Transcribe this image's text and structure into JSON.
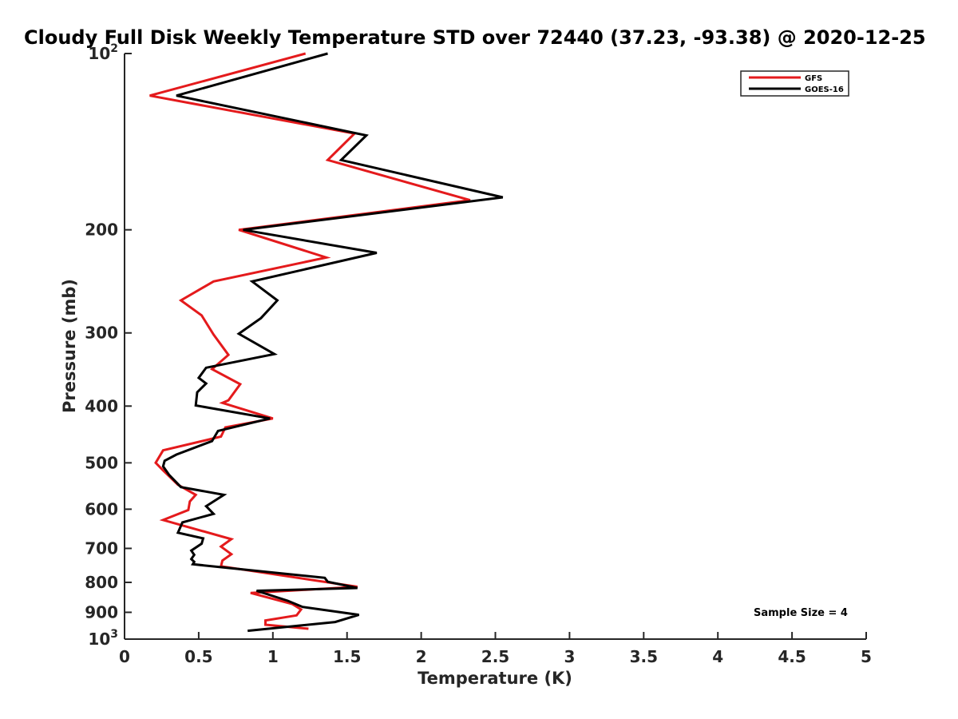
{
  "chart_data": {
    "type": "line",
    "title": "Cloudy Full Disk Weekly Temperature STD over 72440 (37.23, -93.38) @ 2020-12-25",
    "xlabel": "Temperature (K)",
    "ylabel": "Pressure (mb)",
    "xlim": [
      0,
      5
    ],
    "ylim": [
      100,
      1000
    ],
    "y_scale": "log",
    "y_reversed": true,
    "x_ticks": [
      0,
      0.5,
      1,
      1.5,
      2,
      2.5,
      3,
      3.5,
      4,
      4.5,
      5
    ],
    "x_tick_labels": [
      "0",
      "0.5",
      "1",
      "1.5",
      "2",
      "2.5",
      "3",
      "3.5",
      "4",
      "4.5",
      "5"
    ],
    "y_ticks": [
      {
        "value": 100,
        "base": "10",
        "exp": "2"
      },
      {
        "value": 200,
        "label": "200"
      },
      {
        "value": 300,
        "label": "300"
      },
      {
        "value": 400,
        "label": "400"
      },
      {
        "value": 500,
        "label": "500"
      },
      {
        "value": 600,
        "label": "600"
      },
      {
        "value": 700,
        "label": "700"
      },
      {
        "value": 800,
        "label": "800"
      },
      {
        "value": 900,
        "label": "900"
      },
      {
        "value": 1000,
        "base": "10",
        "exp": "3"
      }
    ],
    "legend_position": "top-right",
    "annotation": "Sample Size = 4",
    "series": [
      {
        "name": "GFS",
        "color": "#e41a1c",
        "x": [
          1.22,
          0.17,
          1.55,
          1.37,
          2.33,
          0.77,
          1.36,
          0.6,
          0.38,
          0.52,
          0.6,
          0.7,
          0.59,
          0.78,
          0.7,
          0.66,
          1.0,
          0.68,
          0.65,
          0.26,
          0.21,
          0.26,
          0.36,
          0.48,
          0.44,
          0.43,
          0.26,
          0.72,
          0.65,
          0.72,
          0.66,
          0.65,
          1.57,
          0.85,
          1.13,
          1.19,
          1.16,
          0.95,
          0.95,
          1.24
        ],
        "y": [
          100,
          118,
          137,
          152,
          178,
          200,
          223,
          245,
          264,
          280,
          302,
          327,
          346,
          367,
          391,
          395,
          420,
          435,
          451,
          476,
          500,
          515,
          545,
          567,
          582,
          602,
          626,
          675,
          695,
          716,
          734,
          751,
          814,
          834,
          871,
          890,
          911,
          929,
          945,
          960
        ]
      },
      {
        "name": "GOES-16",
        "color": "#000000",
        "x": [
          1.37,
          0.35,
          1.63,
          1.46,
          2.55,
          0.8,
          1.7,
          0.86,
          1.03,
          0.92,
          0.77,
          1.01,
          0.55,
          0.5,
          0.55,
          0.49,
          0.48,
          0.98,
          0.63,
          0.59,
          0.35,
          0.27,
          0.26,
          0.3,
          0.38,
          0.67,
          0.55,
          0.6,
          0.39,
          0.36,
          0.53,
          0.52,
          0.45,
          0.47,
          0.45,
          0.47,
          0.46,
          1.35,
          1.37,
          1.57,
          0.89,
          1.1,
          1.2,
          1.58,
          1.42,
          0.83
        ],
        "y": [
          100,
          118,
          138,
          152,
          176,
          200,
          219,
          245,
          264,
          283,
          301,
          326,
          344,
          358,
          366,
          379,
          399,
          420,
          441,
          459,
          484,
          496,
          507,
          524,
          550,
          567,
          593,
          611,
          632,
          658,
          673,
          687,
          706,
          718,
          730,
          738,
          745,
          786,
          798,
          818,
          827,
          860,
          881,
          909,
          935,
          968
        ]
      }
    ]
  }
}
